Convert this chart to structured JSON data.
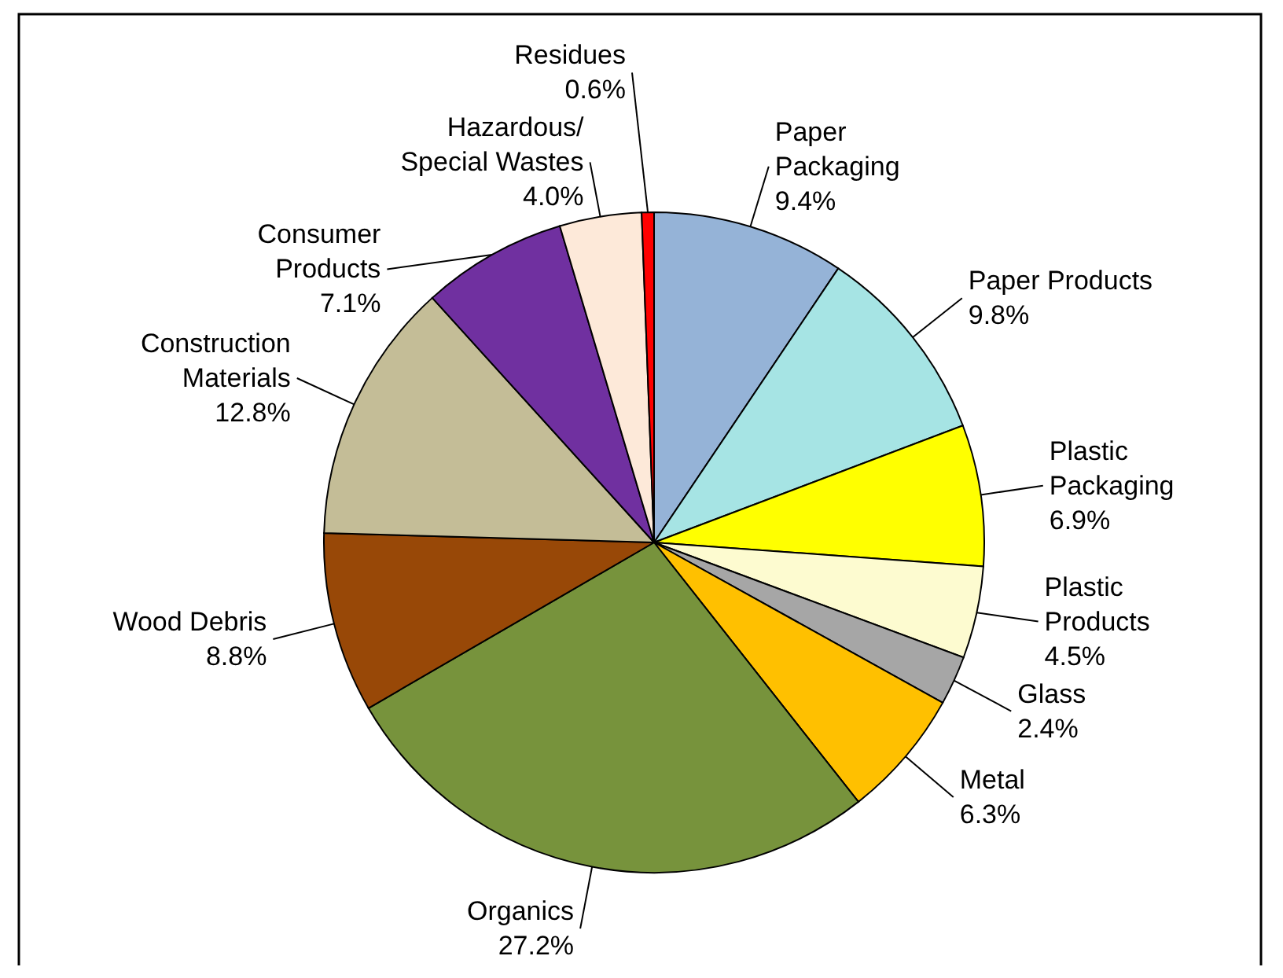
{
  "chart_data": {
    "type": "pie",
    "categories": [
      "Paper\nPackaging",
      "Paper Products",
      "Plastic\nPackaging",
      "Plastic\nProducts",
      "Glass",
      "Metal",
      "Organics",
      "Wood Debris",
      "Construction\nMaterials",
      "Consumer\nProducts",
      "Hazardous/\nSpecial Wastes",
      "Residues"
    ],
    "values": [
      9.4,
      9.8,
      6.9,
      4.5,
      2.4,
      6.3,
      27.2,
      8.8,
      12.8,
      7.1,
      4.0,
      0.6
    ],
    "colors": [
      "#95b3d7",
      "#a6e4e4",
      "#ffff00",
      "#fdfbd0",
      "#a6a6a6",
      "#ffc000",
      "#77933c",
      "#984807",
      "#c4bd97",
      "#7030a0",
      "#fde9d9",
      "#ff0000"
    ],
    "value_labels": [
      "9.4%",
      "9.8%",
      "6.9%",
      "4.5%",
      "2.4%",
      "6.3%",
      "27.2%",
      "8.8%",
      "12.8%",
      "7.1%",
      "4.0%",
      "0.6%"
    ]
  }
}
